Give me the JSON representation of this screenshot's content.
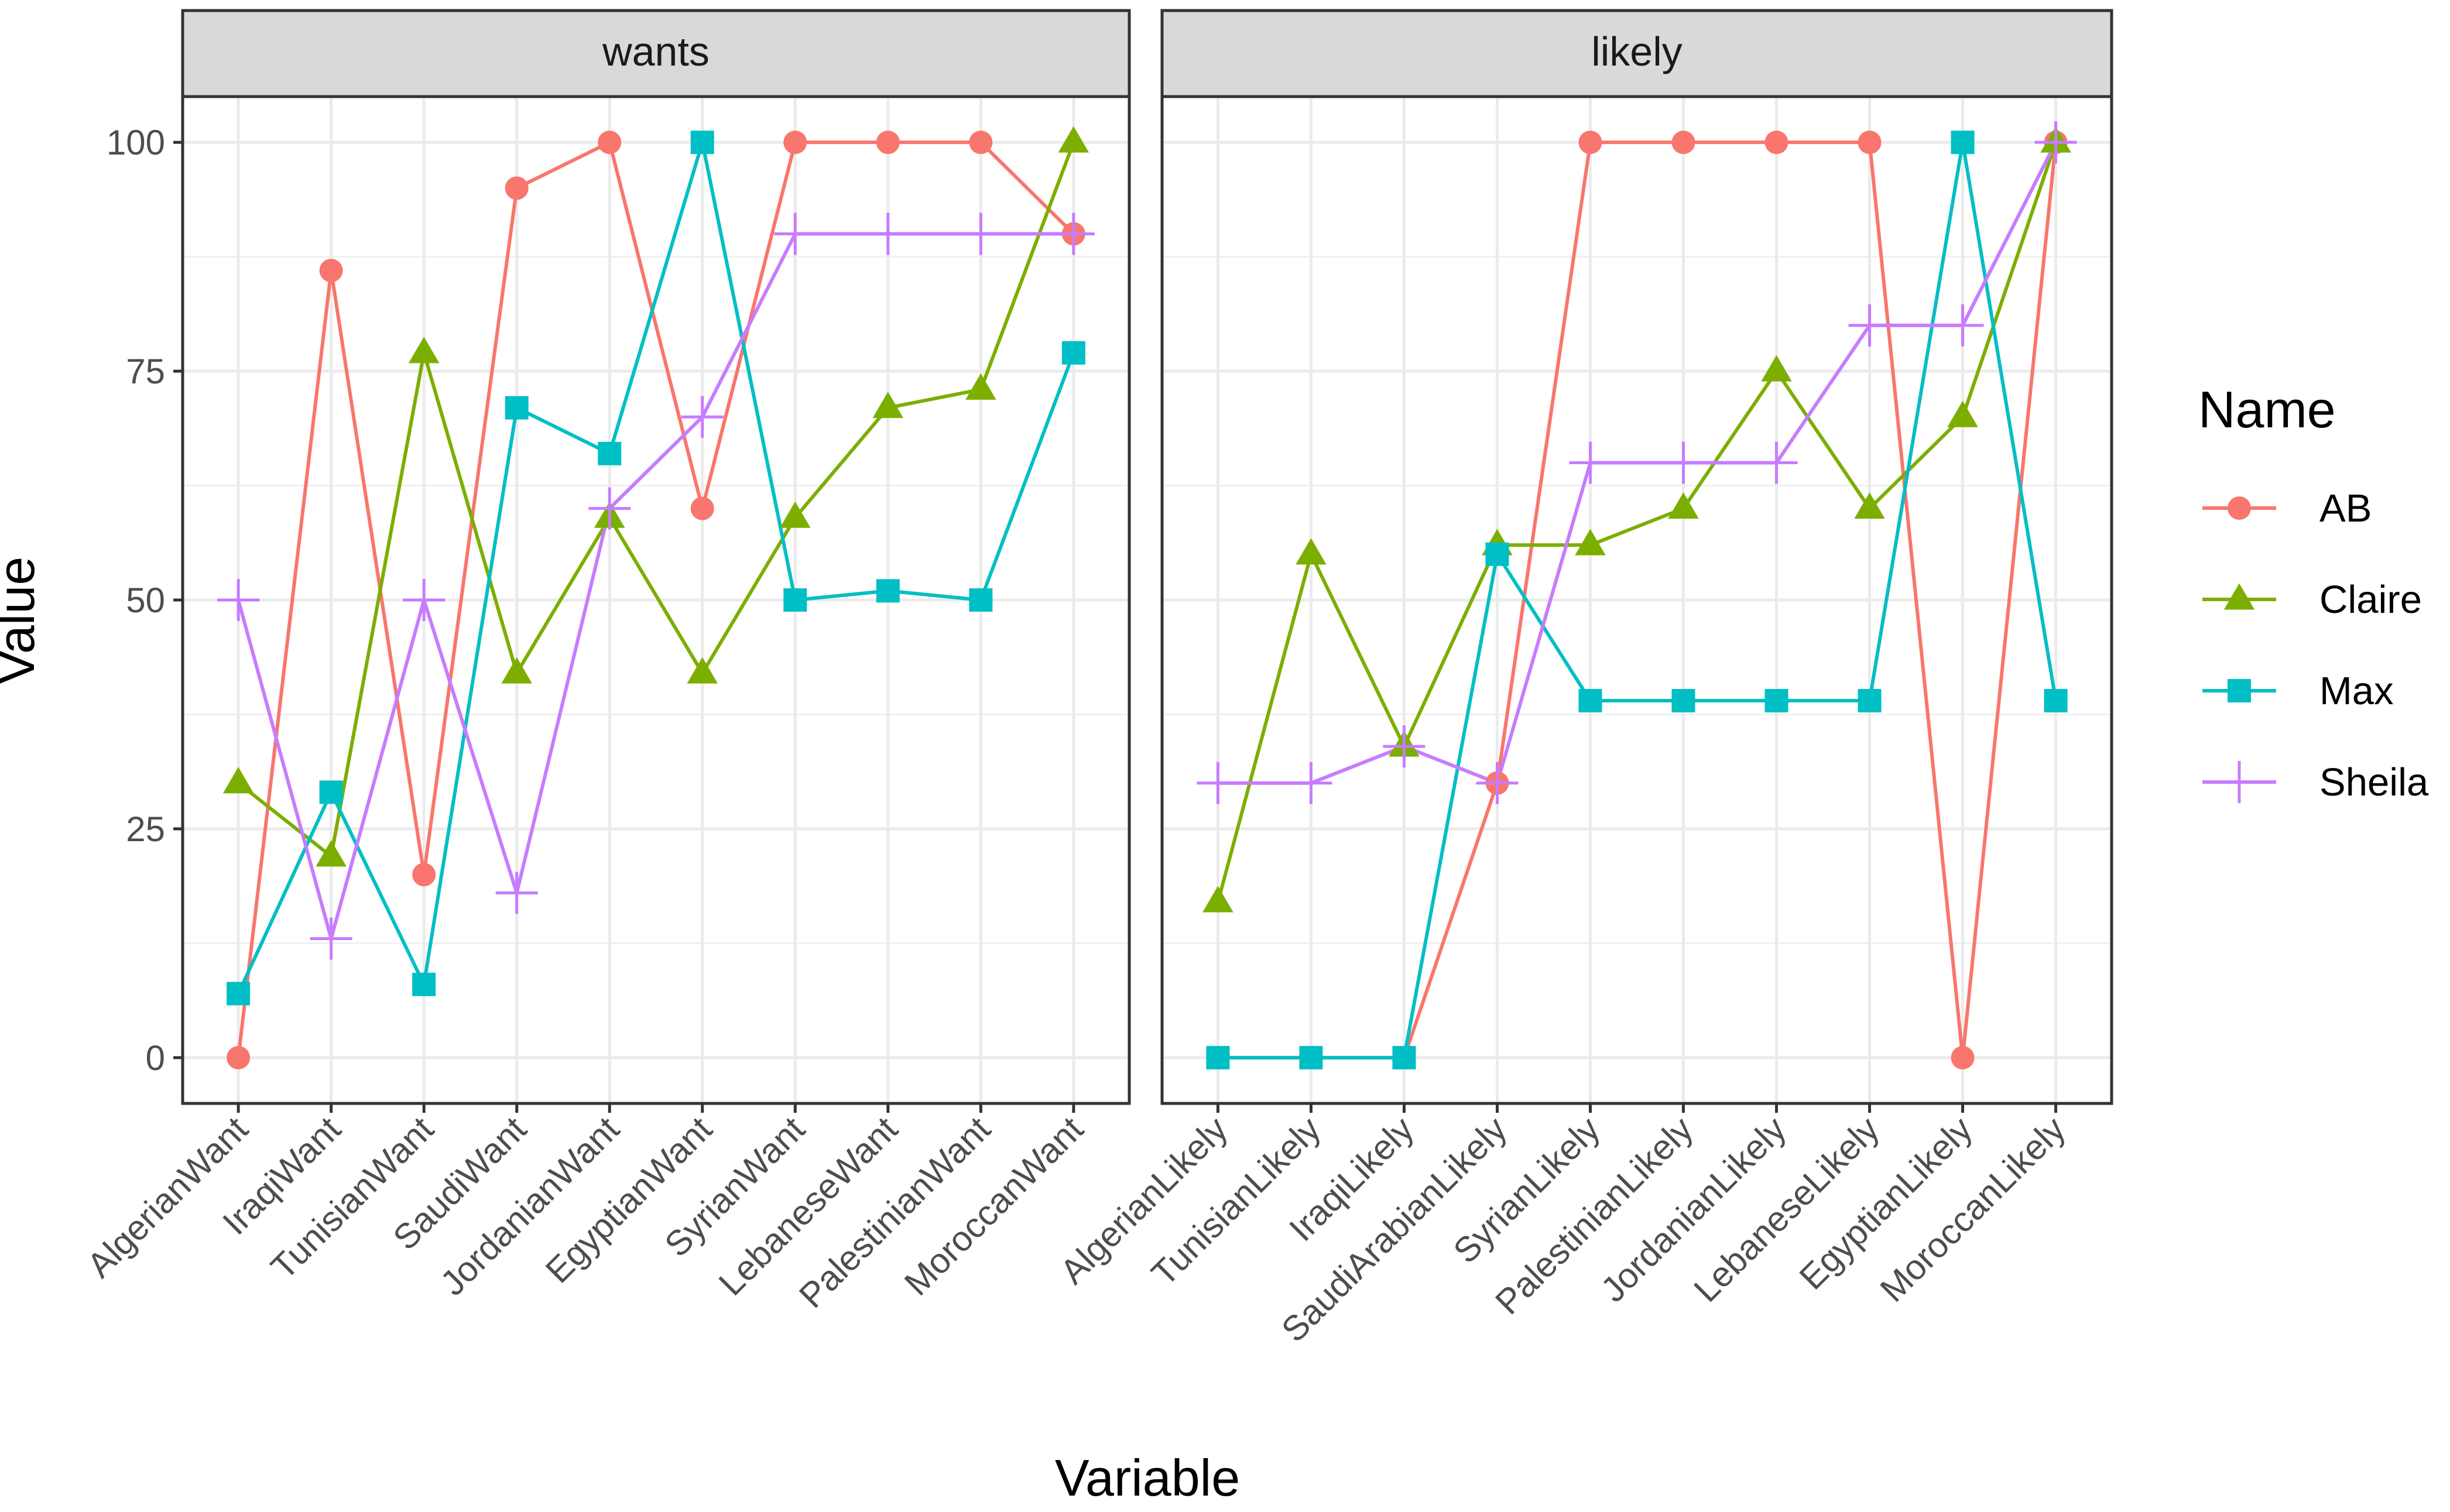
{
  "chart_data": {
    "type": "line",
    "xlabel": "Variable",
    "ylabel": "Value",
    "ylim": [
      -5,
      105
    ],
    "yticks": [
      0,
      25,
      50,
      75,
      100
    ],
    "yticklabels": [
      "0",
      "25",
      "50",
      "75",
      "100"
    ],
    "legend": {
      "title": "Name",
      "placement": "right"
    },
    "colors": {
      "AB": "#F8766D",
      "Claire": "#7CAE00",
      "Max": "#00BFC4",
      "Sheila": "#C77CFF"
    },
    "facets": [
      {
        "label": "wants",
        "categories": [
          "AlgerianWant",
          "IraqiWant",
          "TunisianWant",
          "SaudiWant",
          "JordanianWant",
          "EgyptianWant",
          "SyrianWant",
          "LebaneseWant",
          "PalestinianWant",
          "MoroccanWant"
        ],
        "series": [
          {
            "name": "AB",
            "marker": "circle",
            "values": [
              0,
              86,
              20,
              95,
              100,
              60,
              100,
              100,
              100,
              90
            ]
          },
          {
            "name": "Claire",
            "marker": "triangle",
            "values": [
              30,
              22,
              77,
              42,
              59,
              42,
              59,
              71,
              73,
              100
            ]
          },
          {
            "name": "Max",
            "marker": "square",
            "values": [
              7,
              29,
              8,
              71,
              66,
              100,
              50,
              51,
              50,
              77
            ]
          },
          {
            "name": "Sheila",
            "marker": "plus",
            "values": [
              50,
              13,
              50,
              18,
              60,
              70,
              90,
              90,
              90,
              90
            ]
          }
        ]
      },
      {
        "label": "likely",
        "categories": [
          "AlgerianLikely",
          "TunisianLikely",
          "IraqiLikely",
          "SaudiArabianLikely",
          "SyrianLikely",
          "PalestinianLikely",
          "JordanianLikely",
          "LebaneseLikely",
          "EgyptianLikely",
          "MoroccanLikely"
        ],
        "series": [
          {
            "name": "AB",
            "marker": "circle",
            "values": [
              0,
              0,
              0,
              30,
              100,
              100,
              100,
              100,
              0,
              100
            ]
          },
          {
            "name": "Claire",
            "marker": "triangle",
            "values": [
              17,
              55,
              34,
              56,
              56,
              60,
              75,
              60,
              70,
              100
            ]
          },
          {
            "name": "Max",
            "marker": "square",
            "values": [
              0,
              0,
              0,
              55,
              39,
              39,
              39,
              39,
              100,
              39
            ]
          },
          {
            "name": "Sheila",
            "marker": "plus",
            "values": [
              30,
              30,
              34,
              30,
              65,
              65,
              65,
              80,
              80,
              100
            ]
          }
        ]
      }
    ]
  }
}
